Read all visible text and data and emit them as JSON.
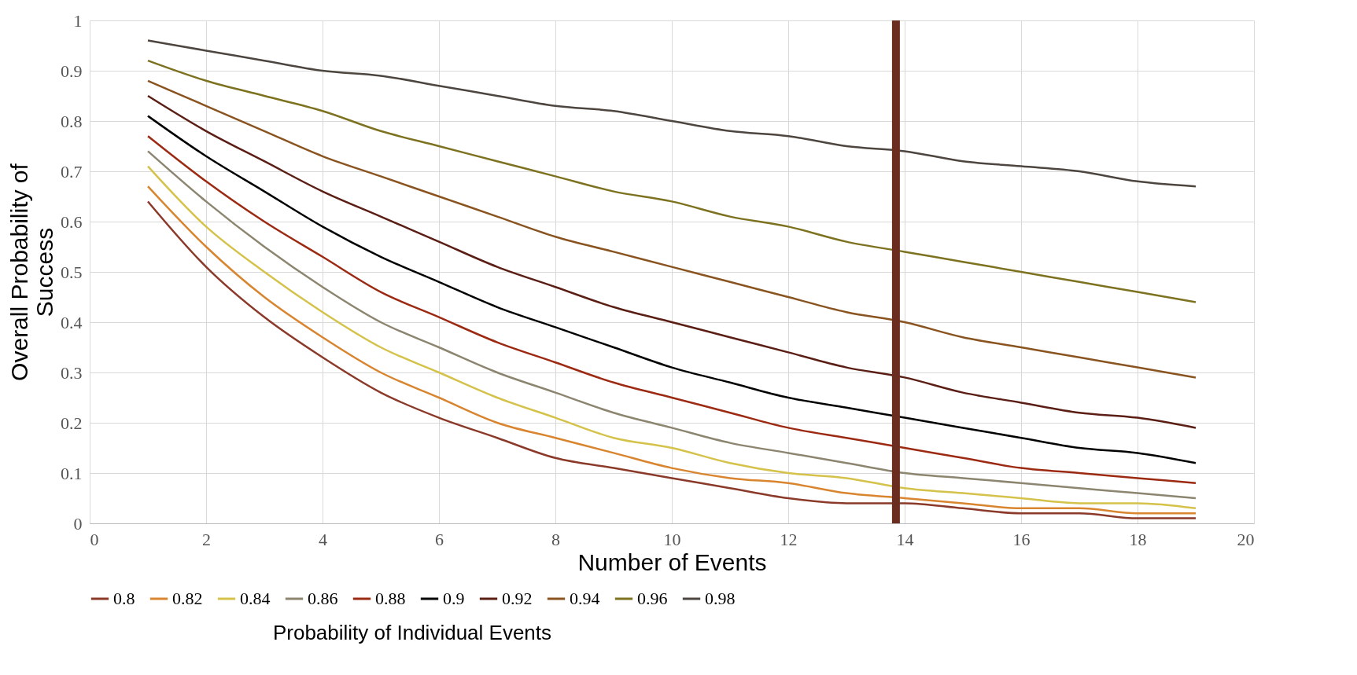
{
  "chart_data": {
    "type": "line",
    "xlabel": "Number of Events",
    "ylabel": "Overall Probability of Success",
    "legend_title": "Probability of Individual Events",
    "x": [
      1,
      2,
      3,
      4,
      5,
      6,
      7,
      8,
      9,
      10,
      11,
      12,
      13,
      14,
      15,
      16,
      17,
      18,
      19
    ],
    "series": [
      {
        "name": "0.8",
        "color": "#8b3a2a",
        "values": [
          0.64,
          0.51,
          0.41,
          0.33,
          0.26,
          0.21,
          0.17,
          0.13,
          0.11,
          0.09,
          0.07,
          0.05,
          0.04,
          0.04,
          0.03,
          0.02,
          0.02,
          0.01,
          0.01
        ]
      },
      {
        "name": "0.82",
        "color": "#d9852f",
        "values": [
          0.67,
          0.55,
          0.45,
          0.37,
          0.3,
          0.25,
          0.2,
          0.17,
          0.14,
          0.11,
          0.09,
          0.08,
          0.06,
          0.05,
          0.04,
          0.03,
          0.03,
          0.02,
          0.02
        ]
      },
      {
        "name": "0.84",
        "color": "#d4c24a",
        "values": [
          0.71,
          0.59,
          0.5,
          0.42,
          0.35,
          0.3,
          0.25,
          0.21,
          0.17,
          0.15,
          0.12,
          0.1,
          0.09,
          0.07,
          0.06,
          0.05,
          0.04,
          0.04,
          0.03
        ]
      },
      {
        "name": "0.86",
        "color": "#8c8570",
        "values": [
          0.74,
          0.64,
          0.55,
          0.47,
          0.4,
          0.35,
          0.3,
          0.26,
          0.22,
          0.19,
          0.16,
          0.14,
          0.12,
          0.1,
          0.09,
          0.08,
          0.07,
          0.06,
          0.05
        ]
      },
      {
        "name": "0.88",
        "color": "#9c2a12",
        "values": [
          0.77,
          0.68,
          0.6,
          0.53,
          0.46,
          0.41,
          0.36,
          0.32,
          0.28,
          0.25,
          0.22,
          0.19,
          0.17,
          0.15,
          0.13,
          0.11,
          0.1,
          0.09,
          0.08
        ]
      },
      {
        "name": "0.9",
        "color": "#000000",
        "values": [
          0.81,
          0.73,
          0.66,
          0.59,
          0.53,
          0.48,
          0.43,
          0.39,
          0.35,
          0.31,
          0.28,
          0.25,
          0.23,
          0.21,
          0.19,
          0.17,
          0.15,
          0.14,
          0.12
        ]
      },
      {
        "name": "0.92",
        "color": "#5a1e14",
        "values": [
          0.85,
          0.78,
          0.72,
          0.66,
          0.61,
          0.56,
          0.51,
          0.47,
          0.43,
          0.4,
          0.37,
          0.34,
          0.31,
          0.29,
          0.26,
          0.24,
          0.22,
          0.21,
          0.19
        ]
      },
      {
        "name": "0.94",
        "color": "#8a5420",
        "values": [
          0.88,
          0.83,
          0.78,
          0.73,
          0.69,
          0.65,
          0.61,
          0.57,
          0.54,
          0.51,
          0.48,
          0.45,
          0.42,
          0.4,
          0.37,
          0.35,
          0.33,
          0.31,
          0.29
        ]
      },
      {
        "name": "0.96",
        "color": "#7d7220",
        "values": [
          0.92,
          0.88,
          0.85,
          0.82,
          0.78,
          0.75,
          0.72,
          0.69,
          0.66,
          0.64,
          0.61,
          0.59,
          0.56,
          0.54,
          0.52,
          0.5,
          0.48,
          0.46,
          0.44
        ]
      },
      {
        "name": "0.98",
        "color": "#4d4640",
        "values": [
          0.96,
          0.94,
          0.92,
          0.9,
          0.89,
          0.87,
          0.85,
          0.83,
          0.82,
          0.8,
          0.78,
          0.77,
          0.75,
          0.74,
          0.72,
          0.71,
          0.7,
          0.68,
          0.67
        ]
      }
    ],
    "xlim": [
      0,
      20
    ],
    "xticks": [
      0,
      2,
      4,
      6,
      8,
      10,
      12,
      14,
      16,
      18,
      20
    ],
    "ylim": [
      0,
      1
    ],
    "yticks": [
      0,
      0.1,
      0.2,
      0.3,
      0.4,
      0.5,
      0.6,
      0.7,
      0.8,
      0.9,
      1
    ],
    "ref_lines": [
      {
        "axis": "x",
        "value": 13.85,
        "color": "#6b2d1f"
      }
    ],
    "grid": true,
    "legend": "bottom",
    "marker": "none",
    "line_style": "solid"
  }
}
